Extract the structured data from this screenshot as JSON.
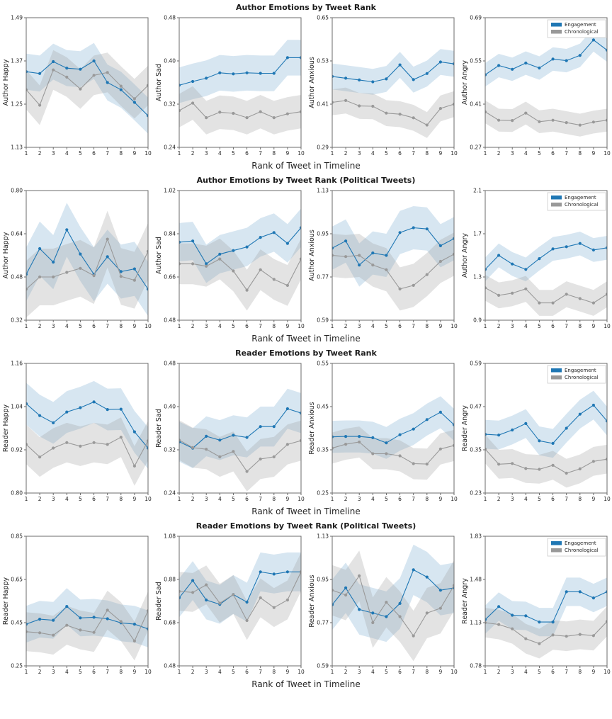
{
  "figure": {
    "xlabel": "Rank of Tweet in Timeline",
    "x_ticks": [
      "1",
      "2",
      "3",
      "4",
      "5",
      "6",
      "7",
      "8",
      "9",
      "10"
    ],
    "legend": {
      "entries": [
        {
          "label": "Engagement",
          "color": "#1f77b4",
          "band_opacity": 0.18
        },
        {
          "label": "Chronological",
          "color": "#999999",
          "band_opacity": 0.28
        }
      ]
    },
    "colors": {
      "engagement": "#1f77b4",
      "chronological": "#999999",
      "spine": "#6b6b6b",
      "text": "#262626",
      "background": "#ffffff"
    }
  },
  "rows": [
    {
      "title": "Author Emotions by Tweet Rank"
    },
    {
      "title": "Author Emotions by Tweet Rank (Political Tweets)"
    },
    {
      "title": "Reader Emotions by Tweet Rank"
    },
    {
      "title": "Reader Emotions by Tweet Rank (Political Tweets)"
    }
  ],
  "chart_data": [
    {
      "type": "line",
      "ylabel": "Author Happy",
      "ylim": [
        1.13,
        1.49
      ],
      "yticks": [
        "1.13",
        "1.25",
        "1.37",
        "1.49"
      ],
      "x": [
        1,
        2,
        3,
        4,
        5,
        6,
        7,
        8,
        9,
        10
      ],
      "legend": false,
      "series": [
        {
          "name": "Engagement",
          "values": [
            1.34,
            1.335,
            1.368,
            1.35,
            1.347,
            1.37,
            1.31,
            1.29,
            1.255,
            1.218
          ],
          "ci": 0.05
        },
        {
          "name": "Chronological",
          "values": [
            1.29,
            1.247,
            1.345,
            1.325,
            1.292,
            1.33,
            1.338,
            1.3,
            1.265,
            1.302
          ],
          "ci": 0.055
        }
      ]
    },
    {
      "type": "line",
      "ylabel": "Author Sad",
      "ylim": [
        0.24,
        0.48
      ],
      "yticks": [
        "0.24",
        "0.32",
        "0.40",
        "0.48"
      ],
      "x": [
        1,
        2,
        3,
        4,
        5,
        6,
        7,
        8,
        9,
        10
      ],
      "legend": false,
      "series": [
        {
          "name": "Engagement",
          "values": [
            0.355,
            0.362,
            0.368,
            0.378,
            0.376,
            0.378,
            0.377,
            0.377,
            0.406,
            0.406
          ],
          "ci": 0.033
        },
        {
          "name": "Chronological",
          "values": [
            0.308,
            0.322,
            0.295,
            0.305,
            0.303,
            0.295,
            0.306,
            0.295,
            0.302,
            0.306
          ],
          "ci": 0.031
        }
      ]
    },
    {
      "type": "line",
      "ylabel": "Author Anxious",
      "ylim": [
        0.29,
        0.65
      ],
      "yticks": [
        "0.29",
        "0.41",
        "0.53",
        "0.65"
      ],
      "x": [
        1,
        2,
        3,
        4,
        5,
        6,
        7,
        8,
        9,
        10
      ],
      "legend": false,
      "series": [
        {
          "name": "Engagement",
          "values": [
            0.487,
            0.482,
            0.477,
            0.472,
            0.48,
            0.519,
            0.478,
            0.495,
            0.527,
            0.522
          ],
          "ci": 0.036
        },
        {
          "name": "Chronological",
          "values": [
            0.415,
            0.42,
            0.405,
            0.404,
            0.385,
            0.382,
            0.372,
            0.352,
            0.398,
            0.41
          ],
          "ci": 0.036
        }
      ]
    },
    {
      "type": "line",
      "ylabel": "Author Angry",
      "ylim": [
        0.27,
        0.69
      ],
      "yticks": [
        "0.27",
        "0.41",
        "0.55",
        "0.69"
      ],
      "x": [
        1,
        2,
        3,
        4,
        5,
        6,
        7,
        8,
        9,
        10
      ],
      "legend": true,
      "series": [
        {
          "name": "Engagement",
          "values": [
            0.505,
            0.535,
            0.523,
            0.543,
            0.527,
            0.556,
            0.551,
            0.568,
            0.618,
            0.585
          ],
          "ci": 0.038
        },
        {
          "name": "Chronological",
          "values": [
            0.385,
            0.358,
            0.357,
            0.381,
            0.353,
            0.358,
            0.35,
            0.342,
            0.352,
            0.358
          ],
          "ci": 0.037
        }
      ]
    },
    {
      "type": "line",
      "ylabel": "Author Happy",
      "ylim": [
        0.32,
        0.8
      ],
      "yticks": [
        "0.32",
        "0.48",
        "0.64",
        "0.80"
      ],
      "x": [
        1,
        2,
        3,
        4,
        5,
        6,
        7,
        8,
        9,
        10
      ],
      "legend": false,
      "series": [
        {
          "name": "Engagement",
          "values": [
            0.49,
            0.585,
            0.535,
            0.655,
            0.565,
            0.49,
            0.555,
            0.5,
            0.51,
            0.435
          ],
          "ci": 0.1
        },
        {
          "name": "Chronological",
          "values": [
            0.435,
            0.48,
            0.48,
            0.497,
            0.512,
            0.485,
            0.62,
            0.482,
            0.468,
            0.575
          ],
          "ci": 0.105
        }
      ]
    },
    {
      "type": "line",
      "ylabel": "Author Sad",
      "ylim": [
        0.48,
        1.02
      ],
      "yticks": [
        "0.48",
        "0.66",
        "0.84",
        "1.02"
      ],
      "x": [
        1,
        2,
        3,
        4,
        5,
        6,
        7,
        8,
        9,
        10
      ],
      "legend": false,
      "series": [
        {
          "name": "Engagement",
          "values": [
            0.805,
            0.81,
            0.715,
            0.755,
            0.77,
            0.785,
            0.825,
            0.845,
            0.8,
            0.865
          ],
          "ci": 0.08
        },
        {
          "name": "Chronological",
          "values": [
            0.715,
            0.715,
            0.705,
            0.735,
            0.685,
            0.605,
            0.69,
            0.65,
            0.625,
            0.735
          ],
          "ci": 0.085
        }
      ]
    },
    {
      "type": "line",
      "ylabel": "Author Anxious",
      "ylim": [
        0.59,
        1.13
      ],
      "yticks": [
        "0.59",
        "0.77",
        "0.95",
        "1.13"
      ],
      "x": [
        1,
        2,
        3,
        4,
        5,
        6,
        7,
        8,
        9,
        10
      ],
      "legend": false,
      "series": [
        {
          "name": "Engagement",
          "values": [
            0.89,
            0.92,
            0.82,
            0.87,
            0.86,
            0.955,
            0.975,
            0.97,
            0.9,
            0.93
          ],
          "ci": 0.09
        },
        {
          "name": "Chronological",
          "values": [
            0.86,
            0.855,
            0.86,
            0.82,
            0.8,
            0.72,
            0.735,
            0.78,
            0.835,
            0.865
          ],
          "ci": 0.09
        }
      ]
    },
    {
      "type": "line",
      "ylabel": "Author Angry",
      "ylim": [
        0.9,
        2.1
      ],
      "yticks": [
        "0.9",
        "1.3",
        "1.7",
        "2.1"
      ],
      "x": [
        1,
        2,
        3,
        4,
        5,
        6,
        7,
        8,
        9,
        10
      ],
      "legend": true,
      "series": [
        {
          "name": "Engagement",
          "values": [
            1.37,
            1.5,
            1.42,
            1.37,
            1.47,
            1.56,
            1.58,
            1.61,
            1.55,
            1.57
          ],
          "ci": 0.11
        },
        {
          "name": "Chronological",
          "values": [
            1.2,
            1.13,
            1.15,
            1.19,
            1.06,
            1.06,
            1.14,
            1.1,
            1.06,
            1.14
          ],
          "ci": 0.12
        }
      ]
    },
    {
      "type": "line",
      "ylabel": "Reader Happy",
      "ylim": [
        0.8,
        1.16
      ],
      "yticks": [
        "0.80",
        "0.92",
        "1.04",
        "1.16"
      ],
      "x": [
        1,
        2,
        3,
        4,
        5,
        6,
        7,
        8,
        9,
        10
      ],
      "legend": false,
      "series": [
        {
          "name": "Engagement",
          "values": [
            1.048,
            1.015,
            0.995,
            1.025,
            1.037,
            1.053,
            1.032,
            1.033,
            0.97,
            0.925
          ],
          "ci": 0.058
        },
        {
          "name": "Chronological",
          "values": [
            0.935,
            0.9,
            0.925,
            0.94,
            0.93,
            0.94,
            0.935,
            0.955,
            0.875,
            0.945
          ],
          "ci": 0.055
        }
      ]
    },
    {
      "type": "line",
      "ylabel": "Reader Sad",
      "ylim": [
        0.24,
        0.48
      ],
      "yticks": [
        "0.24",
        "0.32",
        "0.40",
        "0.48"
      ],
      "x": [
        1,
        2,
        3,
        4,
        5,
        6,
        7,
        8,
        9,
        10
      ],
      "legend": false,
      "series": [
        {
          "name": "Engagement",
          "values": [
            0.335,
            0.323,
            0.345,
            0.338,
            0.347,
            0.343,
            0.363,
            0.363,
            0.396,
            0.388
          ],
          "ci": 0.037
        },
        {
          "name": "Chronological",
          "values": [
            0.338,
            0.324,
            0.321,
            0.307,
            0.317,
            0.28,
            0.303,
            0.307,
            0.33,
            0.337
          ],
          "ci": 0.037
        }
      ]
    },
    {
      "type": "line",
      "ylabel": "Reader Anxious",
      "ylim": [
        0.25,
        0.55
      ],
      "yticks": [
        "0.25",
        "0.35",
        "0.45",
        "0.55"
      ],
      "x": [
        1,
        2,
        3,
        4,
        5,
        6,
        7,
        8,
        9,
        10
      ],
      "legend": false,
      "series": [
        {
          "name": "Engagement",
          "values": [
            0.38,
            0.381,
            0.381,
            0.378,
            0.366,
            0.385,
            0.398,
            0.42,
            0.437,
            0.408
          ],
          "ci": 0.037
        },
        {
          "name": "Chronological",
          "values": [
            0.354,
            0.363,
            0.368,
            0.341,
            0.341,
            0.336,
            0.318,
            0.317,
            0.352,
            0.36
          ],
          "ci": 0.036
        }
      ]
    },
    {
      "type": "line",
      "ylabel": "Reader Angry",
      "ylim": [
        0.23,
        0.59
      ],
      "yticks": [
        "0.23",
        "0.35",
        "0.47",
        "0.59"
      ],
      "x": [
        1,
        2,
        3,
        4,
        5,
        6,
        7,
        8,
        9,
        10
      ],
      "legend": true,
      "series": [
        {
          "name": "Engagement",
          "values": [
            0.393,
            0.391,
            0.405,
            0.423,
            0.375,
            0.368,
            0.41,
            0.449,
            0.474,
            0.43
          ],
          "ci": 0.04
        },
        {
          "name": "Chronological",
          "values": [
            0.352,
            0.31,
            0.312,
            0.298,
            0.296,
            0.307,
            0.285,
            0.297,
            0.318,
            0.324
          ],
          "ci": 0.04
        }
      ]
    },
    {
      "type": "line",
      "ylabel": "Reader Happy",
      "ylim": [
        0.25,
        0.85
      ],
      "yticks": [
        "0.25",
        "0.45",
        "0.65",
        "0.85"
      ],
      "x": [
        1,
        2,
        3,
        4,
        5,
        6,
        7,
        8,
        9,
        10
      ],
      "legend": false,
      "series": [
        {
          "name": "Engagement",
          "values": [
            0.443,
            0.466,
            0.461,
            0.525,
            0.472,
            0.475,
            0.468,
            0.449,
            0.443,
            0.421
          ],
          "ci": 0.085
        },
        {
          "name": "Chronological",
          "values": [
            0.408,
            0.403,
            0.392,
            0.438,
            0.416,
            0.405,
            0.508,
            0.455,
            0.365,
            0.505
          ],
          "ci": 0.09
        }
      ]
    },
    {
      "type": "line",
      "ylabel": "Reader Sad",
      "ylim": [
        0.48,
        1.08
      ],
      "yticks": [
        "0.48",
        "0.68",
        "0.88",
        "1.08"
      ],
      "x": [
        1,
        2,
        3,
        4,
        5,
        6,
        7,
        8,
        9,
        10
      ],
      "legend": false,
      "series": [
        {
          "name": "Engagement",
          "values": [
            0.795,
            0.875,
            0.785,
            0.765,
            0.81,
            0.775,
            0.915,
            0.905,
            0.915,
            0.915
          ],
          "ci": 0.09
        },
        {
          "name": "Chronological",
          "values": [
            0.825,
            0.82,
            0.855,
            0.77,
            0.81,
            0.69,
            0.795,
            0.75,
            0.785,
            0.915
          ],
          "ci": 0.09
        }
      ]
    },
    {
      "type": "line",
      "ylabel": "Reader Anxious",
      "ylim": [
        0.59,
        1.13
      ],
      "yticks": [
        "0.59",
        "0.77",
        "0.95",
        "1.13"
      ],
      "x": [
        1,
        2,
        3,
        4,
        5,
        6,
        7,
        8,
        9,
        10
      ],
      "legend": false,
      "series": [
        {
          "name": "Engagement",
          "values": [
            0.845,
            0.915,
            0.825,
            0.81,
            0.795,
            0.85,
            0.99,
            0.96,
            0.905,
            0.915
          ],
          "ci": 0.105
        },
        {
          "name": "Chronological",
          "values": [
            0.905,
            0.885,
            0.965,
            0.77,
            0.855,
            0.795,
            0.715,
            0.81,
            0.83,
            0.925
          ],
          "ci": 0.105
        }
      ]
    },
    {
      "type": "line",
      "ylabel": "Reader Angry",
      "ylim": [
        0.78,
        1.83
      ],
      "yticks": [
        "0.78",
        "1.13",
        "1.48",
        "1.83"
      ],
      "x": [
        1,
        2,
        3,
        4,
        5,
        6,
        7,
        8,
        9,
        10
      ],
      "legend": true,
      "series": [
        {
          "name": "Engagement",
          "values": [
            1.155,
            1.26,
            1.19,
            1.185,
            1.135,
            1.135,
            1.38,
            1.38,
            1.33,
            1.38
          ],
          "ci": 0.115
        },
        {
          "name": "Chronological",
          "values": [
            1.13,
            1.115,
            1.08,
            1.0,
            0.96,
            1.03,
            1.02,
            1.035,
            1.025,
            1.14
          ],
          "ci": 0.12
        }
      ]
    }
  ]
}
